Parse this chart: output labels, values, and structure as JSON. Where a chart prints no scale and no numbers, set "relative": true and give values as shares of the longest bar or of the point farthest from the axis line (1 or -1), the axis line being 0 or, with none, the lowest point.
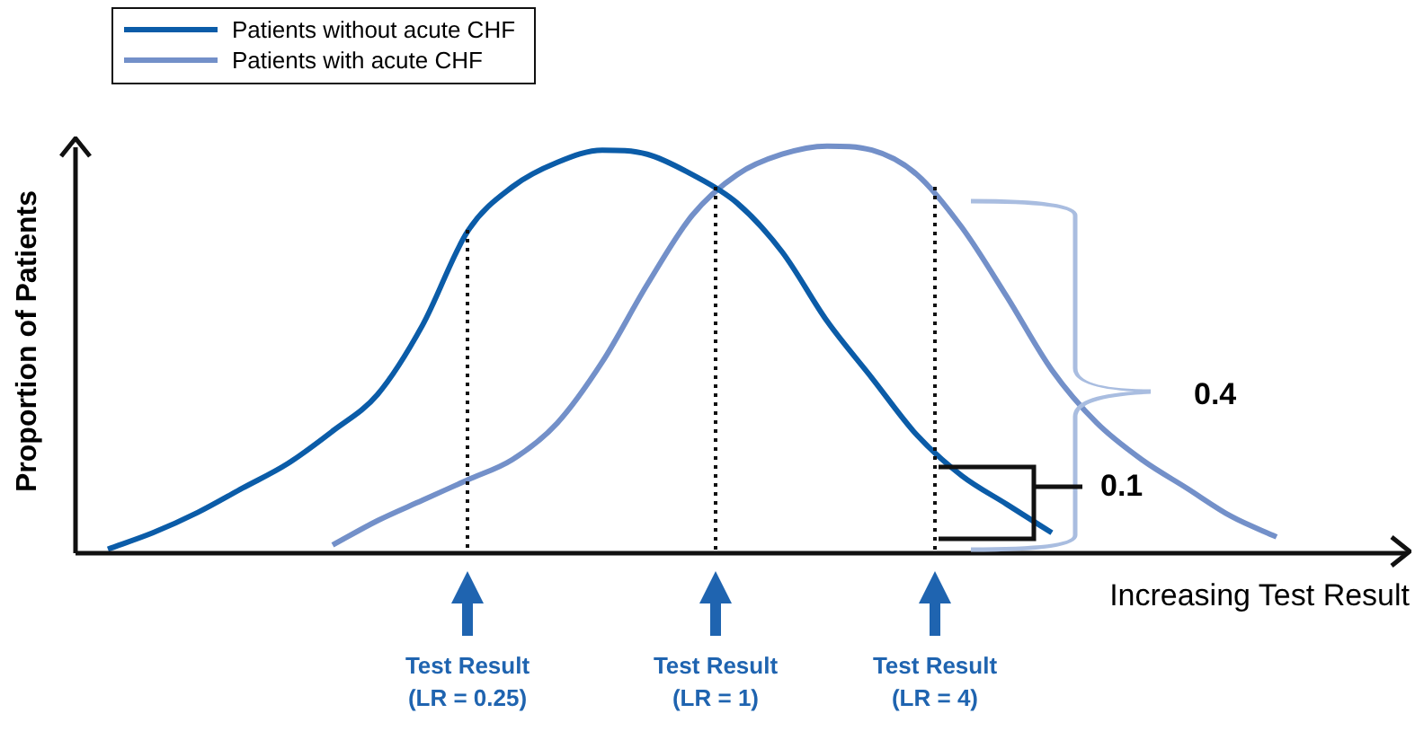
{
  "chart_data": {
    "type": "line",
    "relative": true,
    "legend": "top left",
    "marker": "none",
    "line_style": "solid",
    "xlabel": "Increasing Test Result",
    "ylabel": "Proportion of Patients",
    "categories": [
      null,
      null,
      null,
      null,
      null,
      null,
      null,
      null,
      null,
      null,
      null,
      null,
      null,
      null,
      null,
      null,
      null,
      null,
      null,
      null,
      null,
      null,
      null,
      null,
      null,
      null,
      null,
      null
    ],
    "series": [
      {
        "name": "Patients without acute CHF",
        "color": "#0b5ca8",
        "values": [
          0.01,
          0.05,
          0.1,
          0.16,
          0.22,
          0.3,
          0.39,
          0.56,
          0.79,
          0.9,
          0.96,
          0.99,
          0.98,
          0.93,
          0.86,
          0.74,
          0.57,
          0.43,
          0.29,
          0.19,
          0.12,
          0.05,
          null,
          null,
          null,
          null,
          null,
          null
        ]
      },
      {
        "name": "Patients with acute CHF",
        "color": "#7390c9",
        "values": [
          null,
          null,
          null,
          null,
          null,
          0.02,
          0.08,
          0.13,
          0.18,
          0.23,
          0.32,
          0.47,
          0.66,
          0.83,
          0.93,
          0.98,
          1,
          0.99,
          0.93,
          0.8,
          0.63,
          0.45,
          0.32,
          0.23,
          0.16,
          0.09,
          0.04,
          null
        ]
      }
    ],
    "annotations": [
      "Test Result (LR = 0.25)",
      "Test Result (LR = 1)",
      "Test Result (LR = 4)",
      "0.4",
      "0.1"
    ]
  }
}
